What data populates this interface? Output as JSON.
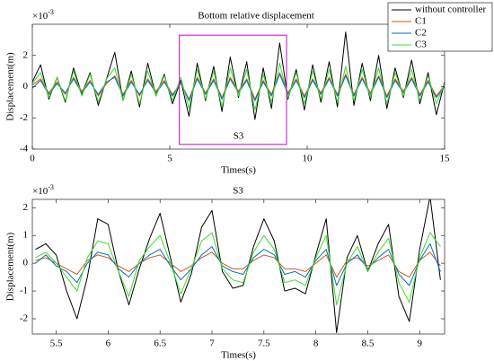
{
  "chart_data": [
    {
      "type": "line",
      "title": "Bottom relative displacement",
      "xlabel": "Times(s)",
      "ylabel": "Displacement(m)",
      "y_multiplier": {
        "base": "×10",
        "exponent": "-3"
      },
      "annotation": "S3",
      "legend": "upper right",
      "x": [
        0,
        0.3,
        0.6,
        0.9,
        1.2,
        1.5,
        1.8,
        2.1,
        2.4,
        2.7,
        3.0,
        3.3,
        3.6,
        3.9,
        4.2,
        4.5,
        4.8,
        5.1,
        5.4,
        5.7,
        6.0,
        6.3,
        6.6,
        6.9,
        7.2,
        7.5,
        7.8,
        8.1,
        8.4,
        8.7,
        9.0,
        9.3,
        9.6,
        9.9,
        10.2,
        10.5,
        10.8,
        11.1,
        11.4,
        11.7,
        12.0,
        12.3,
        12.6,
        12.9,
        13.2,
        13.5,
        13.8,
        14.1,
        14.4,
        14.7,
        15.0
      ],
      "series": [
        {
          "name": "without controller",
          "color": "#000000",
          "values": [
            0.3,
            1.4,
            -0.8,
            0.6,
            -1.0,
            1.2,
            -0.5,
            0.9,
            -1.2,
            0.5,
            2.2,
            -0.9,
            1.0,
            -1.3,
            1.5,
            -0.6,
            0.8,
            -1.1,
            0.4,
            -1.9,
            1.5,
            -0.9,
            1.3,
            -1.6,
            1.9,
            -0.7,
            1.6,
            -2.1,
            1.2,
            -1.4,
            2.8,
            -0.8,
            1.1,
            -1.5,
            1.4,
            -1.0,
            1.6,
            -1.3,
            3.5,
            -1.2,
            1.5,
            -0.9,
            2.0,
            -1.4,
            1.2,
            -0.7,
            1.7,
            -1.1,
            0.9,
            -1.8,
            0.3
          ]
        },
        {
          "name": "C1",
          "color": "#d95319",
          "values": [
            0.1,
            0.5,
            -0.4,
            0.3,
            -0.5,
            0.6,
            -0.3,
            0.4,
            -0.6,
            0.2,
            0.7,
            -0.5,
            0.4,
            -0.6,
            0.5,
            -0.3,
            0.4,
            -0.5,
            0.2,
            -0.8,
            0.6,
            -0.4,
            0.5,
            -0.7,
            0.6,
            -0.3,
            0.5,
            -0.8,
            0.4,
            -0.5,
            0.9,
            -0.4,
            0.5,
            -0.6,
            0.5,
            -0.4,
            0.6,
            -0.5,
            0.8,
            -0.5,
            0.6,
            -0.4,
            0.7,
            -0.6,
            0.5,
            -0.3,
            0.6,
            -0.5,
            0.4,
            -0.6,
            0.1
          ]
        },
        {
          "name": "C2",
          "color": "#0072bd",
          "values": [
            -0.1,
            0.4,
            -0.5,
            0.2,
            -0.4,
            0.5,
            -0.4,
            0.3,
            -0.5,
            0.3,
            0.6,
            -0.6,
            0.3,
            -0.5,
            0.4,
            -0.4,
            0.3,
            -0.6,
            0.3,
            -0.9,
            0.5,
            -0.5,
            0.4,
            -0.8,
            0.5,
            -0.4,
            0.4,
            -0.9,
            0.3,
            -0.6,
            0.8,
            -0.5,
            0.4,
            -0.7,
            0.4,
            -0.5,
            0.5,
            -0.6,
            0.7,
            -0.6,
            0.5,
            -0.5,
            0.6,
            -0.7,
            0.4,
            -0.4,
            0.5,
            -0.6,
            0.3,
            -0.7,
            0.0
          ]
        },
        {
          "name": "C3",
          "color": "#3ddc2a",
          "values": [
            0.2,
            0.9,
            -0.7,
            0.6,
            -0.9,
            1.0,
            -0.6,
            0.8,
            -1.0,
            0.5,
            1.2,
            -0.9,
            0.8,
            -1.1,
            1.0,
            -0.6,
            0.7,
            -0.9,
            0.6,
            -1.4,
            1.1,
            -0.8,
            1.0,
            -1.3,
            1.2,
            -0.6,
            1.1,
            -1.5,
            0.8,
            -1.0,
            1.5,
            -0.7,
            0.9,
            -1.1,
            1.0,
            -0.8,
            1.1,
            -1.0,
            1.3,
            -0.9,
            1.1,
            -0.7,
            1.2,
            -1.1,
            0.9,
            -0.6,
            1.1,
            -0.9,
            0.7,
            -1.1,
            0.2
          ]
        }
      ],
      "highlight": {
        "xlim": [
          5.35,
          9.25
        ],
        "ylim": [
          -3.7,
          3.3
        ],
        "color": "#d000d0"
      },
      "xlim": [
        0,
        15
      ],
      "xticks": [
        0,
        5,
        10,
        15
      ],
      "ylim": [
        -4,
        4
      ],
      "yticks": [
        -4,
        -2,
        0,
        2
      ]
    },
    {
      "type": "line",
      "title": "S3",
      "xlabel": "Times(s)",
      "ylabel": "Displacement(m)",
      "y_multiplier": {
        "base": "×10",
        "exponent": "-3"
      },
      "x": [
        5.3,
        5.4,
        5.5,
        5.6,
        5.7,
        5.8,
        5.9,
        6.0,
        6.1,
        6.2,
        6.3,
        6.4,
        6.5,
        6.6,
        6.7,
        6.8,
        6.9,
        7.0,
        7.1,
        7.2,
        7.3,
        7.4,
        7.5,
        7.6,
        7.7,
        7.8,
        7.9,
        8.0,
        8.1,
        8.2,
        8.3,
        8.4,
        8.5,
        8.6,
        8.7,
        8.8,
        8.9,
        9.0,
        9.1,
        9.2
      ],
      "series": [
        {
          "color": "#000000",
          "values": [
            0.5,
            0.7,
            0.3,
            -1.0,
            -2.0,
            -0.5,
            1.6,
            1.4,
            -0.3,
            -1.5,
            -0.2,
            0.9,
            1.8,
            0.2,
            -1.4,
            -0.4,
            1.3,
            1.9,
            -0.3,
            -0.9,
            -0.8,
            0.6,
            1.6,
            0.8,
            -1.0,
            -0.9,
            -1.1,
            0.3,
            1.6,
            -2.5,
            0.2,
            1.0,
            -0.3,
            0.7,
            1.4,
            -1.2,
            -2.1,
            0.5,
            2.4,
            -0.6
          ]
        },
        {
          "color": "#d95319",
          "values": [
            0.1,
            0.2,
            0.0,
            -0.2,
            -0.4,
            0.1,
            0.3,
            0.2,
            -0.1,
            -0.3,
            0.0,
            0.2,
            0.3,
            0.0,
            -0.3,
            -0.1,
            0.2,
            0.4,
            0.0,
            -0.2,
            -0.2,
            0.1,
            0.3,
            0.2,
            -0.2,
            -0.2,
            -0.3,
            0.0,
            0.3,
            -0.5,
            0.1,
            0.2,
            -0.1,
            0.1,
            0.3,
            -0.3,
            -0.5,
            0.1,
            0.4,
            -0.1
          ]
        },
        {
          "color": "#0072bd",
          "values": [
            0.0,
            0.3,
            -0.1,
            -0.3,
            -0.7,
            0.0,
            0.4,
            0.3,
            -0.2,
            -0.5,
            0.0,
            0.3,
            0.5,
            -0.1,
            -0.6,
            -0.2,
            0.3,
            0.6,
            -0.1,
            -0.3,
            -0.4,
            0.2,
            0.5,
            0.3,
            -0.4,
            -0.3,
            -0.5,
            0.1,
            0.5,
            -0.8,
            0.0,
            0.3,
            -0.2,
            0.2,
            0.5,
            -0.4,
            -0.8,
            0.1,
            0.7,
            -0.3
          ]
        },
        {
          "color": "#3ddc2a",
          "values": [
            0.2,
            0.4,
            0.0,
            -0.5,
            -1.0,
            0.2,
            0.8,
            0.7,
            -0.3,
            -1.2,
            0.1,
            0.6,
            1.0,
            0.0,
            -1.1,
            -0.2,
            0.8,
            1.1,
            -0.2,
            -0.6,
            -0.7,
            0.4,
            1.0,
            0.5,
            -0.7,
            -0.6,
            -0.8,
            0.2,
            1.0,
            -1.5,
            0.0,
            0.6,
            -0.3,
            0.4,
            0.9,
            -0.7,
            -1.4,
            0.2,
            1.1,
            0.6
          ]
        }
      ],
      "xlim": [
        5.27,
        9.24
      ],
      "xticks": [
        5.5,
        6,
        6.5,
        7,
        7.5,
        8,
        8.5,
        9
      ],
      "ylim": [
        -2.55,
        2.3
      ],
      "yticks": [
        -2,
        -1,
        0,
        1,
        2
      ]
    }
  ]
}
